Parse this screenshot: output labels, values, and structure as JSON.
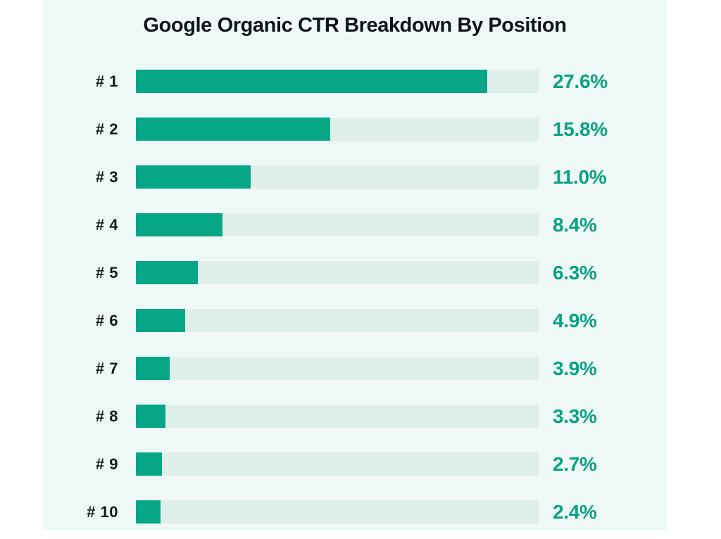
{
  "title": "Google Organic CTR Breakdown By Position",
  "colors": {
    "page_background": "#ffffff",
    "panel_background": "#eef8f6",
    "bar_fill": "#07a786",
    "bar_track": "#dff0ec",
    "value_text": "#0aa183",
    "label_text": "#121a1c",
    "title_text": "#0e1518"
  },
  "chart_data": {
    "type": "bar",
    "orientation": "horizontal",
    "title": "Google Organic CTR Breakdown By Position",
    "xlabel": "",
    "ylabel": "",
    "categories": [
      "# 1",
      "# 2",
      "# 3",
      "# 4",
      "# 5",
      "# 6",
      "# 7",
      "# 8",
      "# 9",
      "# 10"
    ],
    "values": [
      27.6,
      15.8,
      11.0,
      8.4,
      6.3,
      4.9,
      3.9,
      3.3,
      2.7,
      2.4
    ],
    "value_labels": [
      "27.6%",
      "15.8%",
      "11.0%",
      "8.4%",
      "6.3%",
      "4.9%",
      "3.9%",
      "3.3%",
      "2.7%",
      "2.4%"
    ],
    "unit": "%",
    "grid": false,
    "legend": false,
    "bar_pct_of_track": [
      87.2,
      48.3,
      28.5,
      21.5,
      15.4,
      12.2,
      8.4,
      7.3,
      6.5,
      6.1
    ]
  },
  "rows": [
    {
      "label": "# 1",
      "value_label": "27.6%",
      "value": 27.6,
      "width_pct": 87.2
    },
    {
      "label": "# 2",
      "value_label": "15.8%",
      "value": 15.8,
      "width_pct": 48.3
    },
    {
      "label": "# 3",
      "value_label": "11.0%",
      "value": 11.0,
      "width_pct": 28.5
    },
    {
      "label": "# 4",
      "value_label": "8.4%",
      "value": 8.4,
      "width_pct": 21.5
    },
    {
      "label": "# 5",
      "value_label": "6.3%",
      "value": 6.3,
      "width_pct": 15.4
    },
    {
      "label": "# 6",
      "value_label": "4.9%",
      "value": 4.9,
      "width_pct": 12.2
    },
    {
      "label": "# 7",
      "value_label": "3.9%",
      "value": 3.9,
      "width_pct": 8.4
    },
    {
      "label": "# 8",
      "value_label": "3.3%",
      "value": 3.3,
      "width_pct": 7.3
    },
    {
      "label": "# 9",
      "value_label": "2.7%",
      "value": 2.7,
      "width_pct": 6.5
    },
    {
      "label": "# 10",
      "value_label": "2.4%",
      "value": 2.4,
      "width_pct": 6.1
    }
  ]
}
